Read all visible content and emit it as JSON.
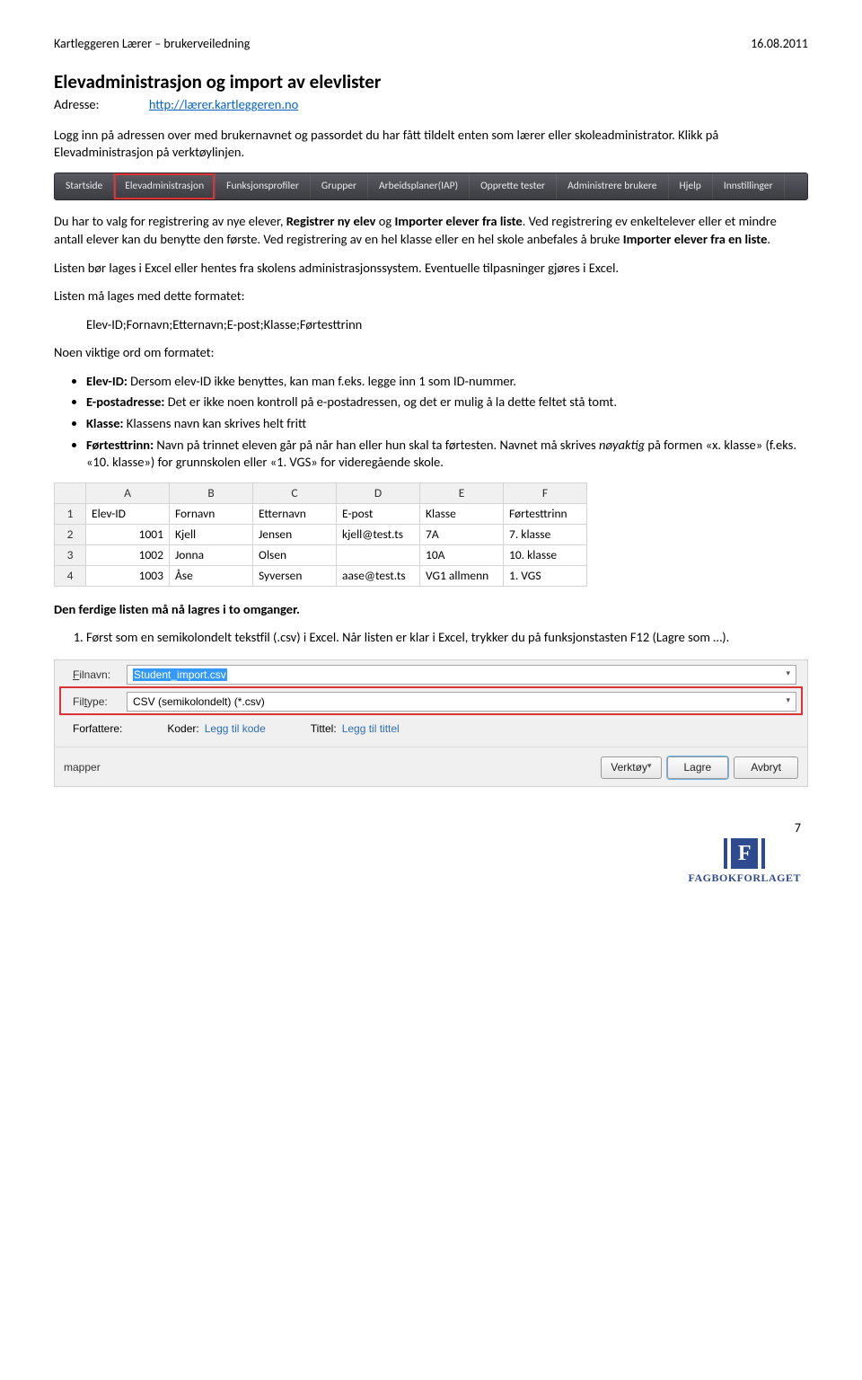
{
  "header": {
    "left": "Kartleggeren Lærer – brukerveiledning",
    "right": "16.08.2011"
  },
  "title": "Elevadministrasjon og import av elevlister",
  "address_label": "Adresse:",
  "address_url": "http://lærer.kartleggeren.no",
  "intro": "Logg inn på adressen over med brukernavnet og passordet du har fått tildelt enten som lærer eller skoleadministrator. Klikk på Elevadministrasjon på verktøylinjen.",
  "navbar": [
    "Startside",
    "Elevadministrasjon",
    "Funksjonsprofiler",
    "Grupper",
    "Arbeidsplaner(IAP)",
    "Opprette tester",
    "Administrere brukere",
    "Hjelp",
    "Innstillinger"
  ],
  "navbar_highlight_index": 1,
  "p_two_choices_a": "Du har to valg for registrering av nye elever, ",
  "p_two_choices_b1": "Registrer ny elev",
  "p_two_choices_mid": " og ",
  "p_two_choices_b2": "Importer elever fra liste",
  "p_two_choices_c": ". Ved registrering ev enkeltelever eller et mindre antall elever kan du benytte den første. Ved registrering av en hel klasse eller en hel skole anbefales å bruke ",
  "p_two_choices_b3": "Importer elever fra en liste",
  "p_two_choices_end": ".",
  "p_listen": "Listen bør lages i Excel eller hentes fra skolens administrasjonssystem. Eventuelle tilpasninger gjøres i Excel.",
  "p_format_intro": "Listen må lages med dette formatet:",
  "format_line": "Elev-ID;Fornavn;Etternavn;E-post;Klasse;Førtesttrinn",
  "p_noen": "Noen viktige ord om formatet:",
  "bullets": {
    "b1_strong": "Elev-ID:",
    "b1_rest": " Dersom elev-ID ikke benyttes, kan man f.eks. legge inn 1 som ID-nummer.",
    "b2_strong": "E-postadresse:",
    "b2_rest": " Det er ikke noen kontroll på e-postadressen, og det er mulig å la dette feltet stå tomt.",
    "b3_strong": "Klasse:",
    "b3_rest": " Klassens navn kan skrives helt fritt",
    "b4_strong": "Førtesttrinn:",
    "b4_rest_a": " Navn på trinnet eleven går på når han eller hun skal ta førtesten. Navnet må skrives ",
    "b4_italic": "nøyaktig",
    "b4_rest_b": " på formen «x. klasse» (f.eks. «10. klasse») for grunnskolen eller «1. VGS» for videregående skole."
  },
  "excel": {
    "cols": [
      "A",
      "B",
      "C",
      "D",
      "E",
      "F"
    ],
    "rows": [
      [
        "Elev-ID",
        "Fornavn",
        "Etternavn",
        "E-post",
        "Klasse",
        "Førtesttrinn"
      ],
      [
        "1001",
        "Kjell",
        "Jensen",
        "kjell@test.ts",
        "7A",
        "7. klasse"
      ],
      [
        "1002",
        "Jonna",
        "Olsen",
        "",
        "10A",
        "10. klasse"
      ],
      [
        "1003",
        "Åse",
        "Syversen",
        "aase@test.ts",
        "VG1 allmenn",
        "1. VGS"
      ]
    ],
    "row_nums": [
      "1",
      "2",
      "3",
      "4"
    ]
  },
  "p_ferdig": "Den ferdige listen må nå lagres i to omganger.",
  "step1": "Først som en semikolondelt tekstfil (.csv) i Excel. Når listen er klar i Excel, trykker du på funksjonstasten F12 (Lagre som …).",
  "dialog": {
    "filnavn_label": "Filnavn:",
    "filnavn_value": "Student_import.csv",
    "filtype_label": "Filtype:",
    "filtype_value": "CSV (semikolondelt) (*.csv)",
    "forfattere": "Forfattere:",
    "koder_label": "Koder:",
    "koder_link": "Legg til kode",
    "tittel_label": "Tittel:",
    "tittel_link": "Legg til tittel",
    "mapper": "mapper",
    "verktoy": "Verktøy",
    "lagre": "Lagre",
    "avbryt": "Avbryt"
  },
  "footer": {
    "page": "7",
    "brand": "FAGBOKFORLAGET",
    "logo_letter": "F"
  }
}
